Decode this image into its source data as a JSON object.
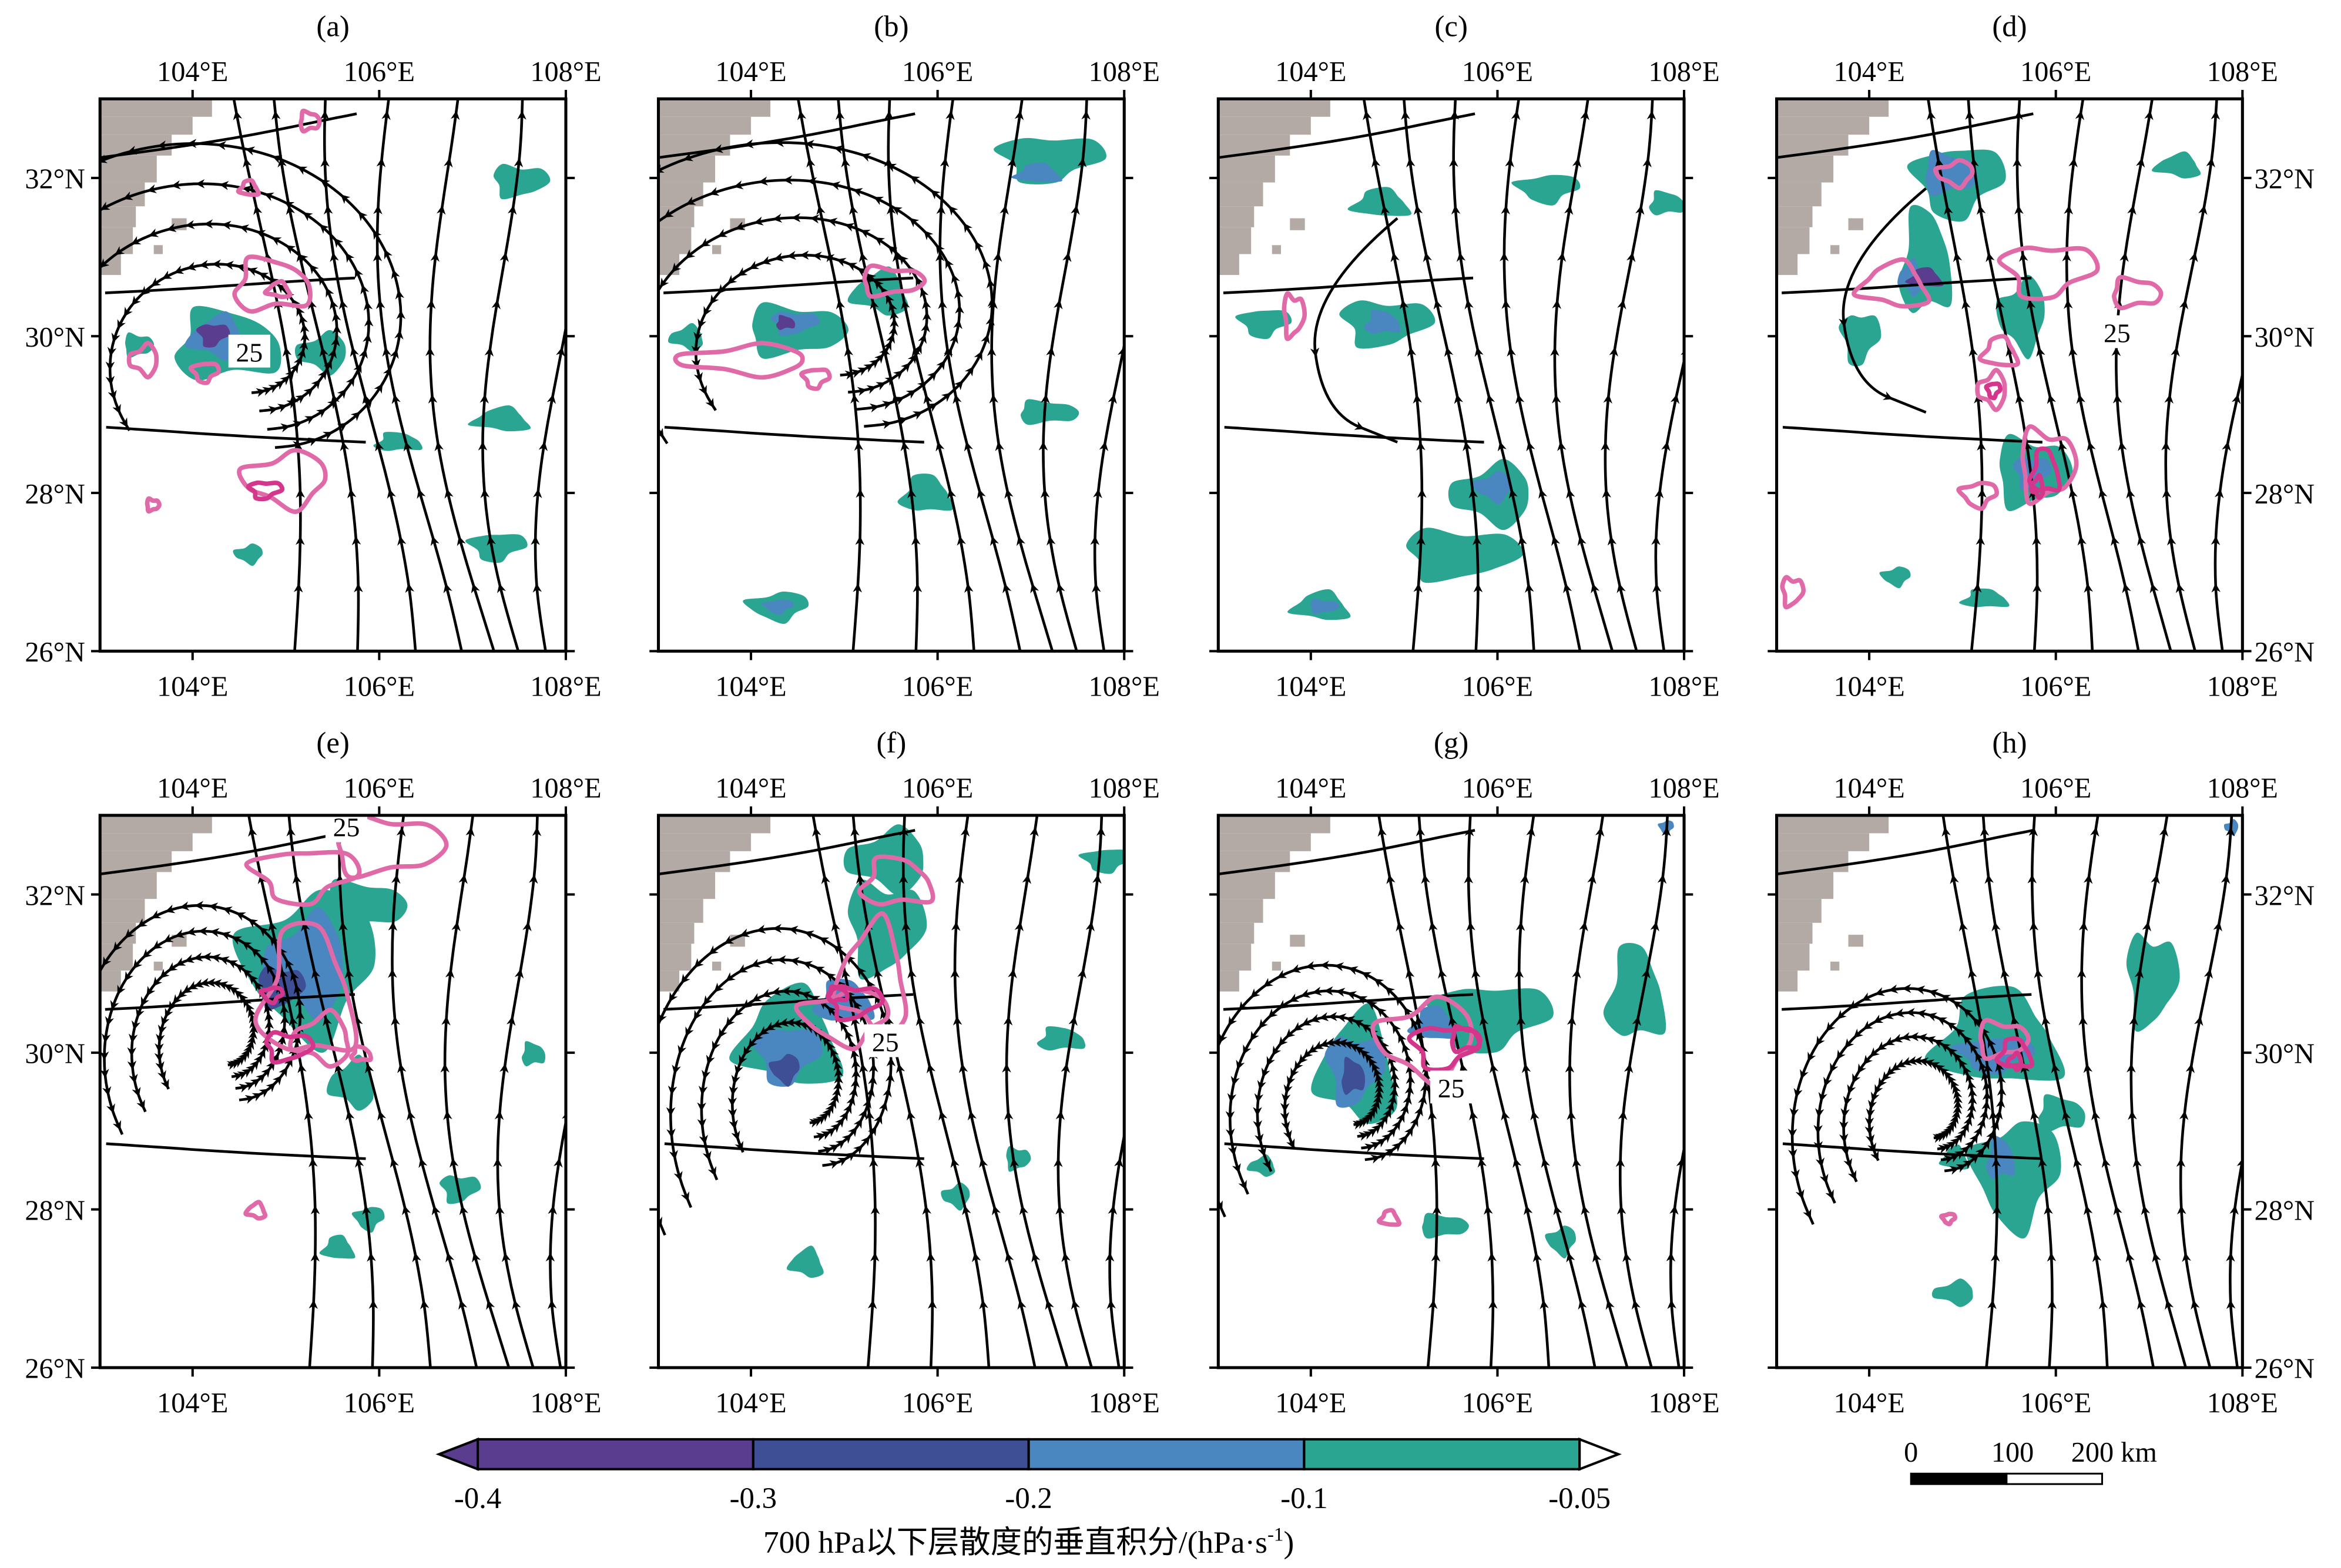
{
  "panels": [
    {
      "label": "(a)",
      "contour_label": "25",
      "show_left_lat": true,
      "show_right_lat": false
    },
    {
      "label": "(b)",
      "contour_label": "",
      "show_left_lat": false,
      "show_right_lat": false
    },
    {
      "label": "(c)",
      "contour_label": "",
      "show_left_lat": false,
      "show_right_lat": false
    },
    {
      "label": "(d)",
      "contour_label": "25",
      "show_left_lat": false,
      "show_right_lat": true
    },
    {
      "label": "(e)",
      "contour_label": "25",
      "show_left_lat": true,
      "show_right_lat": false
    },
    {
      "label": "(f)",
      "contour_label": "25",
      "show_left_lat": false,
      "show_right_lat": false
    },
    {
      "label": "(g)",
      "contour_label": "25",
      "show_left_lat": false,
      "show_right_lat": false
    },
    {
      "label": "(h)",
      "contour_label": "",
      "show_left_lat": false,
      "show_right_lat": true
    }
  ],
  "axes": {
    "lon_ticks": [
      "104°E",
      "106°E",
      "108°E"
    ],
    "lat_ticks": [
      "26°N",
      "28°N",
      "30°N",
      "32°N"
    ],
    "lon_range": [
      103,
      108
    ],
    "lat_range": [
      26,
      33
    ]
  },
  "colorbar": {
    "tick_labels": [
      "-0.4",
      "-0.3",
      "-0.2",
      "-0.1",
      "-0.05"
    ],
    "colors": [
      "#5a3d8e",
      "#3e4f96",
      "#4a86bf",
      "#2aa592"
    ],
    "title": "700 hPa以下层散度的垂直积分/(hPa·s",
    "title_sup": "-1",
    "title_end": ")"
  },
  "scale_bar": {
    "labels": [
      "0",
      "100",
      "200 km"
    ]
  },
  "colors": {
    "terrain": "#b3aaa6",
    "contour": "#e06aa8",
    "contour_dark": "#d3368a",
    "streamline": "#000000"
  }
}
